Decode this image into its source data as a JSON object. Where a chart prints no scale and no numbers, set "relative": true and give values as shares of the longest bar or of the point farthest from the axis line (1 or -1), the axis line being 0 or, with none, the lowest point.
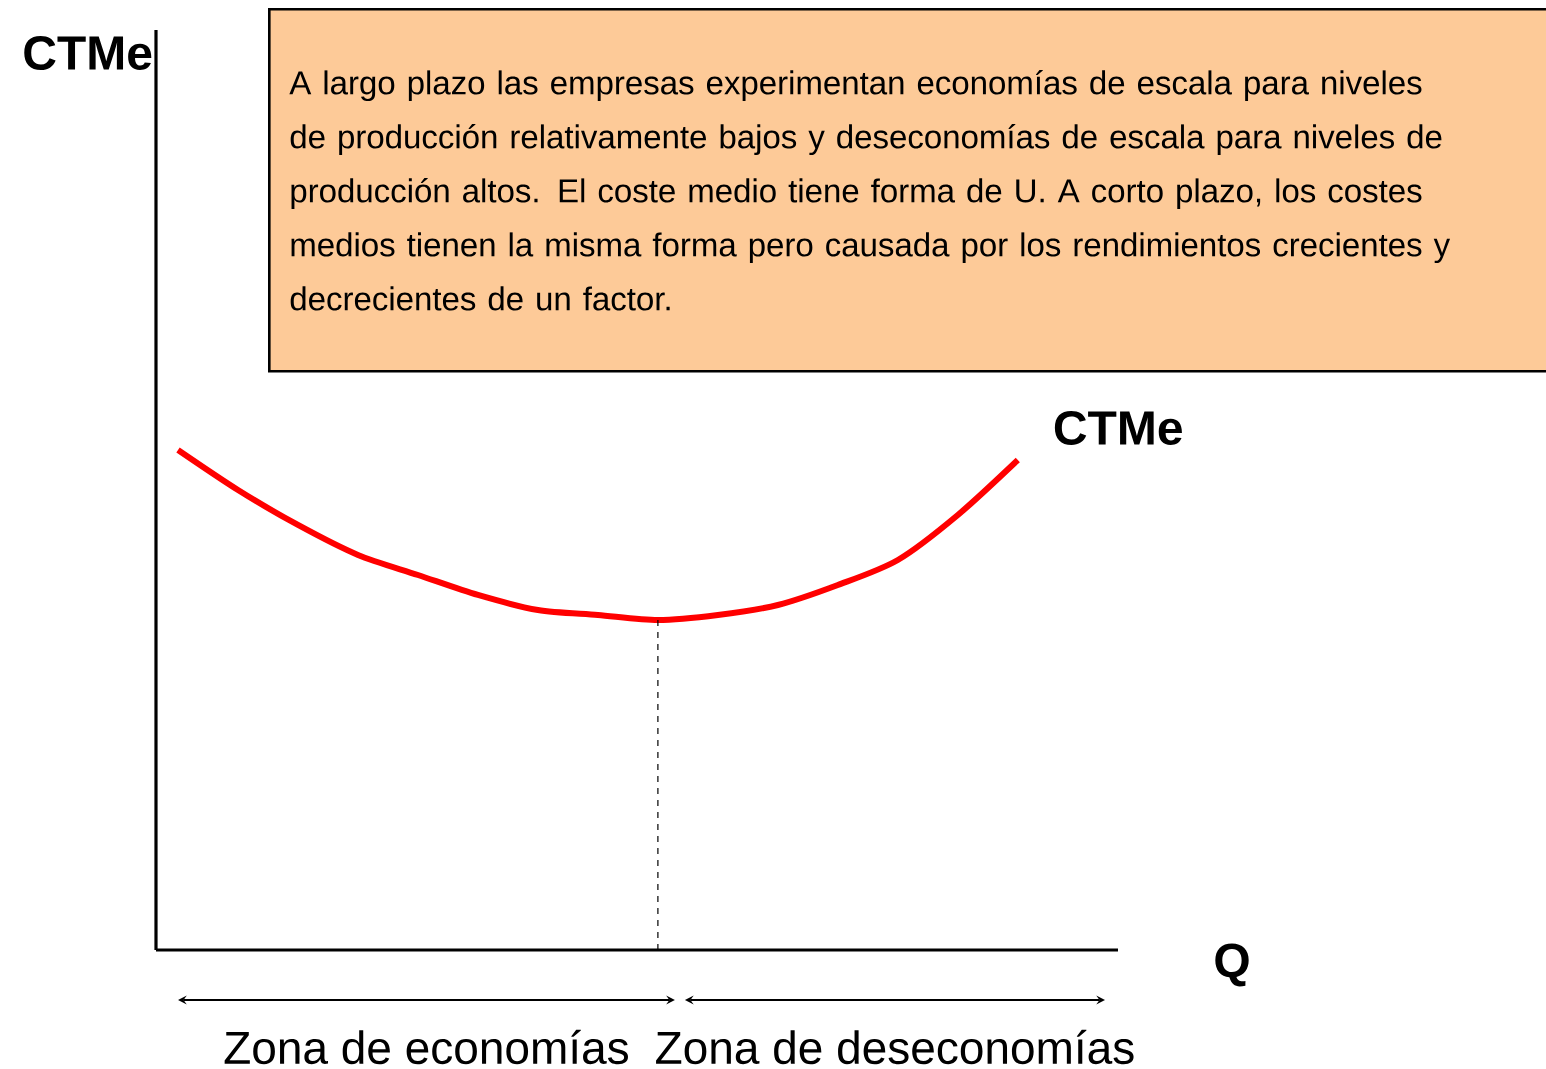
{
  "chart_data": {
    "type": "line",
    "relative": true,
    "xlabel": "Q",
    "categories": [
      null,
      null,
      null,
      null,
      null,
      null,
      null,
      null,
      null,
      null,
      null,
      null,
      null,
      null,
      null
    ],
    "series": [
      {
        "name": "CTMe",
        "color": "#ff0000",
        "values": [
          1,
          0.92,
          0.85,
          0.79,
          0.75,
          0.71,
          0.68,
          0.67,
          0.66,
          0.67,
          0.69,
          0.73,
          0.78,
          0.87,
          0.98
        ]
      }
    ],
    "annotations": [
      "A largo plazo las empresas experimentan economías de escala para niveles de producción relativamente bajos y deseconomías de escala para niveles de producción altos. El coste medio tiene forma de U. A corto plazo, los costes medios tienen la misma forma pero causada por los rendimientos crecientes y decrecientes de un factor.",
      "CTMe",
      "Zona de economías",
      "Zona de deseconomías"
    ]
  }
}
